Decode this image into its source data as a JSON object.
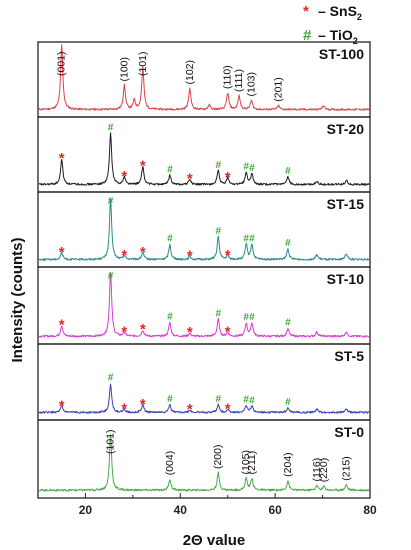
{
  "chart_data": {
    "type": "line",
    "title": "",
    "xlabel": "2Θ value",
    "ylabel": "Intensity (counts)",
    "xlim": [
      10,
      80
    ],
    "xticks": [
      "20",
      "40",
      "60",
      "80"
    ],
    "grid": false,
    "legend": {
      "placement": "top-right",
      "entries": [
        {
          "marker": "*",
          "dash": "–",
          "formula": "SnS",
          "subscript": "2",
          "color": "#e5262a"
        },
        {
          "marker": "#",
          "dash": "–",
          "formula": "TiO",
          "subscript": "2",
          "color": "#3aaa35"
        }
      ]
    },
    "series": [
      {
        "name": "ST-100",
        "color": "#d9434a",
        "background": 0.1,
        "peaks": [
          [
            15.0,
            0.86
          ],
          [
            28.2,
            0.32
          ],
          [
            30.3,
            0.12
          ],
          [
            32.1,
            0.56
          ],
          [
            42.0,
            0.28
          ],
          [
            46.1,
            0.06
          ],
          [
            50.0,
            0.22
          ],
          [
            52.4,
            0.18
          ],
          [
            55.0,
            0.12
          ],
          [
            60.7,
            0.05
          ],
          [
            70.2,
            0.05
          ]
        ],
        "hkl": [
          {
            "label": "(001)",
            "x": 15.0
          },
          {
            "label": "(100)",
            "x": 28.2
          },
          {
            "label": "(101)",
            "x": 32.1
          },
          {
            "label": "(102)",
            "x": 42.0
          },
          {
            "label": "(110)",
            "x": 50.0
          },
          {
            "label": "(111)",
            "x": 52.4
          },
          {
            "label": "(103)",
            "x": 55.0
          },
          {
            "label": "(201)",
            "x": 60.7
          }
        ],
        "stars": [],
        "hashes": []
      },
      {
        "name": "ST-20",
        "color": "#1e1e1e",
        "background": 0.1,
        "peaks": [
          [
            15.0,
            0.34
          ],
          [
            25.3,
            0.68
          ],
          [
            28.2,
            0.1
          ],
          [
            32.1,
            0.24
          ],
          [
            37.8,
            0.12
          ],
          [
            42.0,
            0.07
          ],
          [
            48.0,
            0.18
          ],
          [
            50.0,
            0.09
          ],
          [
            53.9,
            0.16
          ],
          [
            55.1,
            0.14
          ],
          [
            62.7,
            0.1
          ],
          [
            68.8,
            0.05
          ],
          [
            75.0,
            0.06
          ]
        ],
        "hkl": [],
        "stars": [
          15.0,
          28.2,
          32.1,
          42.0,
          50.0
        ],
        "hashes": [
          25.3,
          37.8,
          48.0,
          53.9,
          55.1,
          62.7
        ]
      },
      {
        "name": "ST-15",
        "color": "#2a8a86",
        "background": 0.1,
        "peaks": [
          [
            15.0,
            0.09
          ],
          [
            25.3,
            0.8
          ],
          [
            28.2,
            0.05
          ],
          [
            32.1,
            0.09
          ],
          [
            37.8,
            0.2
          ],
          [
            42.0,
            0.04
          ],
          [
            48.0,
            0.3
          ],
          [
            50.0,
            0.05
          ],
          [
            53.9,
            0.2
          ],
          [
            55.1,
            0.2
          ],
          [
            62.7,
            0.14
          ],
          [
            68.8,
            0.06
          ],
          [
            75.0,
            0.08
          ]
        ],
        "hkl": [],
        "stars": [
          15.0,
          28.2,
          32.1,
          42.0,
          50.0
        ],
        "hashes": [
          25.3,
          37.8,
          48.0,
          53.9,
          55.1,
          62.7
        ]
      },
      {
        "name": "ST-10",
        "color": "#d33ed0",
        "background": 0.1,
        "peaks": [
          [
            15.0,
            0.14
          ],
          [
            25.3,
            0.84
          ],
          [
            28.2,
            0.05
          ],
          [
            32.1,
            0.08
          ],
          [
            37.8,
            0.18
          ],
          [
            42.0,
            0.04
          ],
          [
            48.0,
            0.22
          ],
          [
            50.0,
            0.05
          ],
          [
            53.9,
            0.17
          ],
          [
            55.1,
            0.17
          ],
          [
            62.7,
            0.1
          ],
          [
            68.8,
            0.06
          ],
          [
            75.0,
            0.06
          ]
        ],
        "hkl": [],
        "stars": [
          15.0,
          28.2,
          32.1,
          42.0,
          50.0
        ],
        "hashes": [
          25.3,
          37.8,
          48.0,
          53.9,
          55.1,
          62.7
        ]
      },
      {
        "name": "ST-5",
        "color": "#3b3fb9",
        "background": 0.1,
        "peaks": [
          [
            15.0,
            0.08
          ],
          [
            25.3,
            0.38
          ],
          [
            28.2,
            0.04
          ],
          [
            32.1,
            0.1
          ],
          [
            37.8,
            0.1
          ],
          [
            42.0,
            0.03
          ],
          [
            48.0,
            0.1
          ],
          [
            50.0,
            0.04
          ],
          [
            53.9,
            0.09
          ],
          [
            55.1,
            0.08
          ],
          [
            62.7,
            0.06
          ],
          [
            68.8,
            0.04
          ],
          [
            75.0,
            0.04
          ]
        ],
        "hkl": [],
        "stars": [
          15.0,
          28.2,
          32.1,
          42.0,
          50.0
        ],
        "hashes": [
          25.3,
          37.8,
          48.0,
          53.9,
          55.1,
          62.7
        ]
      },
      {
        "name": "ST-0",
        "color": "#4aa84a",
        "background": 0.1,
        "peaks": [
          [
            25.3,
            0.72
          ],
          [
            37.8,
            0.14
          ],
          [
            48.0,
            0.22
          ],
          [
            53.9,
            0.15
          ],
          [
            55.1,
            0.15
          ],
          [
            62.7,
            0.12
          ],
          [
            68.8,
            0.06
          ],
          [
            70.3,
            0.05
          ],
          [
            75.0,
            0.07
          ]
        ],
        "hkl": [
          {
            "label": "(101)",
            "x": 25.3
          },
          {
            "label": "(004)",
            "x": 37.8
          },
          {
            "label": "(200)",
            "x": 48.0
          },
          {
            "label": "(105)",
            "x": 53.9
          },
          {
            "label": "(211)",
            "x": 55.1
          },
          {
            "label": "(204)",
            "x": 62.7
          },
          {
            "label": "(116)",
            "x": 68.8
          },
          {
            "label": "(220)",
            "x": 70.3
          },
          {
            "label": "(215)",
            "x": 75.0
          }
        ],
        "stars": [],
        "hashes": []
      }
    ]
  }
}
